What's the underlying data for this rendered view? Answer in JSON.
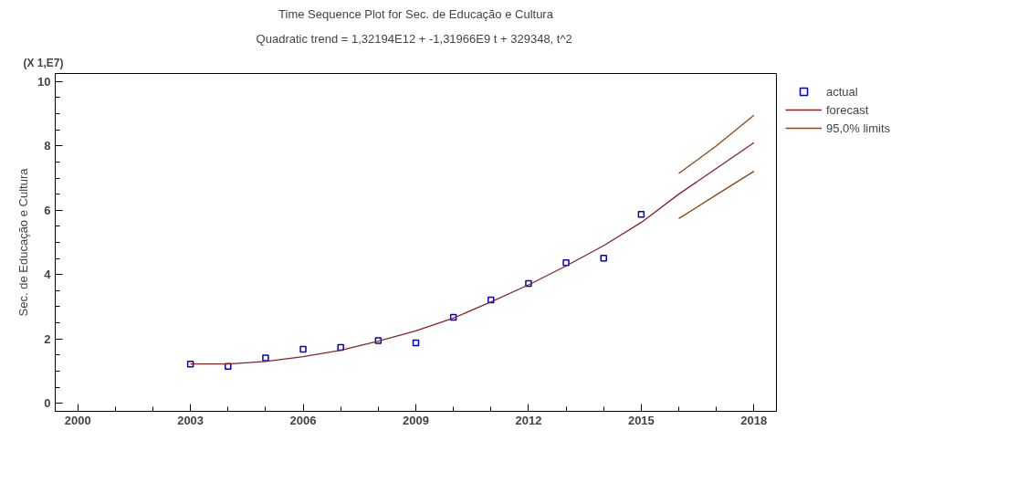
{
  "chart_data": {
    "type": "line",
    "title": "Time Sequence Plot for Sec. de Educação e Cultura",
    "subtitle": "Quadratic trend = 1,32194E12 + -1,31966E9 t  + 329348, t^2",
    "ylabel": "Sec. de Educação e Cultura",
    "annotations": [
      "(X 1,E7)"
    ],
    "xlim": [
      1999.4,
      2018.6
    ],
    "xticks": [
      2000,
      2003,
      2006,
      2009,
      2012,
      2015,
      2018
    ],
    "ylim": [
      -0.25,
      10.25
    ],
    "yticks": [
      0,
      2,
      4,
      6,
      8,
      10
    ],
    "grid": false,
    "legend": "top right",
    "series": [
      {
        "name": "actual",
        "type": "scatter",
        "marker": "square",
        "color": "#0000cc",
        "x": [
          2003,
          2004,
          2005,
          2006,
          2007,
          2008,
          2009,
          2010,
          2011,
          2012,
          2013,
          2014,
          2015
        ],
        "values": [
          1.22,
          1.15,
          1.41,
          1.68,
          1.74,
          1.95,
          1.88,
          2.67,
          3.21,
          3.72,
          4.37,
          4.51,
          5.87
        ]
      },
      {
        "name": "forecast",
        "color": "#8b2323",
        "x": [
          2003,
          2004,
          2005,
          2006,
          2007,
          2008,
          2009,
          2010,
          2011,
          2012,
          2013,
          2014,
          2015,
          2016,
          2017,
          2018
        ],
        "values": [
          1.22,
          1.22,
          1.3,
          1.45,
          1.65,
          1.93,
          2.25,
          2.65,
          3.15,
          3.68,
          4.27,
          4.9,
          5.62,
          6.5,
          7.3,
          8.1
        ]
      },
      {
        "name": "95,0% limits",
        "type": "line",
        "color": "#8b4513",
        "x": [
          2016,
          2017,
          2018
        ],
        "values": [
          7.14,
          8.0,
          8.95
        ]
      },
      {
        "type": "line",
        "color": "#8b4513",
        "x": [
          2016,
          2017,
          2018
        ],
        "values": [
          5.74,
          6.48,
          7.21
        ]
      }
    ]
  }
}
